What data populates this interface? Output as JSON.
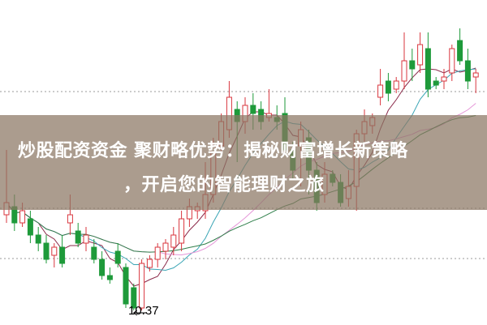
{
  "title": {
    "line1": "炒股配资资金 聚财略优势：揭秘财富增长新策略",
    "line2": "，开启您的智能理财之旅"
  },
  "chart_data": {
    "type": "candlestick",
    "low_label": "10.37",
    "colors": {
      "up": "#d9363e",
      "down": "#1e9a3a",
      "ma": [
        "#8b2a4a",
        "#3aa5b5",
        "#e596d8",
        "#2f7f4a"
      ]
    },
    "candles": [
      {
        "o": 11.55,
        "c": 11.7,
        "h": 12.35,
        "l": 11.45
      },
      {
        "o": 11.65,
        "c": 11.45,
        "h": 11.8,
        "l": 11.35
      },
      {
        "o": 11.45,
        "c": 11.6,
        "h": 11.7,
        "l": 11.4
      },
      {
        "o": 11.5,
        "c": 11.3,
        "h": 11.6,
        "l": 11.2
      },
      {
        "o": 11.3,
        "c": 11.2,
        "h": 11.4,
        "l": 11.1
      },
      {
        "o": 11.2,
        "c": 11.0,
        "h": 11.3,
        "l": 10.95
      },
      {
        "o": 11.05,
        "c": 11.15,
        "h": 11.2,
        "l": 10.9
      },
      {
        "o": 11.15,
        "c": 10.95,
        "h": 11.3,
        "l": 10.9
      },
      {
        "o": 11.45,
        "c": 11.55,
        "h": 11.8,
        "l": 11.3
      },
      {
        "o": 11.35,
        "c": 11.2,
        "h": 11.45,
        "l": 11.15
      },
      {
        "o": 11.2,
        "c": 11.3,
        "h": 11.4,
        "l": 11.1
      },
      {
        "o": 11.15,
        "c": 11.0,
        "h": 11.25,
        "l": 10.95
      },
      {
        "o": 11.0,
        "c": 10.8,
        "h": 11.1,
        "l": 10.75
      },
      {
        "o": 10.8,
        "c": 10.75,
        "h": 10.9,
        "l": 10.7
      },
      {
        "o": 11.1,
        "c": 10.95,
        "h": 11.2,
        "l": 10.9
      },
      {
        "o": 10.9,
        "c": 10.45,
        "h": 10.95,
        "l": 10.4
      },
      {
        "o": 10.65,
        "c": 10.4,
        "h": 10.7,
        "l": 10.37
      },
      {
        "o": 10.4,
        "c": 10.95,
        "h": 11.0,
        "l": 10.37
      },
      {
        "o": 10.9,
        "c": 11.0,
        "h": 11.05,
        "l": 10.85
      },
      {
        "o": 11.0,
        "c": 11.15,
        "h": 11.2,
        "l": 10.9
      },
      {
        "o": 11.1,
        "c": 11.2,
        "h": 11.25,
        "l": 11.0
      },
      {
        "o": 11.15,
        "c": 11.3,
        "h": 11.4,
        "l": 11.05
      },
      {
        "o": 11.2,
        "c": 11.5,
        "h": 11.6,
        "l": 11.1
      },
      {
        "o": 11.5,
        "c": 11.65,
        "h": 11.75,
        "l": 11.4
      },
      {
        "o": 11.6,
        "c": 11.65,
        "h": 11.7,
        "l": 11.5
      },
      {
        "o": 11.6,
        "c": 11.8,
        "h": 12.2,
        "l": 11.5
      },
      {
        "o": 11.8,
        "c": 12.4,
        "h": 12.5,
        "l": 11.7
      },
      {
        "o": 12.4,
        "c": 12.7,
        "h": 12.8,
        "l": 12.3
      },
      {
        "o": 12.6,
        "c": 13.0,
        "h": 13.2,
        "l": 12.5
      },
      {
        "o": 12.85,
        "c": 12.7,
        "h": 12.95,
        "l": 12.2
      },
      {
        "o": 12.7,
        "c": 12.9,
        "h": 13.0,
        "l": 12.55
      },
      {
        "o": 12.9,
        "c": 12.8,
        "h": 13.05,
        "l": 12.6
      },
      {
        "o": 12.85,
        "c": 12.7,
        "h": 12.95,
        "l": 12.6
      },
      {
        "o": 12.75,
        "c": 12.8,
        "h": 13.1,
        "l": 12.7
      },
      {
        "o": 12.75,
        "c": 12.7,
        "h": 12.9,
        "l": 12.6
      },
      {
        "o": 12.8,
        "c": 12.35,
        "h": 13.0,
        "l": 12.3
      },
      {
        "o": 12.35,
        "c": 12.1,
        "h": 12.45,
        "l": 11.98
      },
      {
        "o": 12.4,
        "c": 12.6,
        "h": 12.7,
        "l": 11.9
      },
      {
        "o": 12.5,
        "c": 12.1,
        "h": 12.6,
        "l": 11.8
      },
      {
        "o": 12.1,
        "c": 11.7,
        "h": 12.2,
        "l": 11.6
      },
      {
        "o": 11.8,
        "c": 12.05,
        "h": 12.2,
        "l": 11.7
      },
      {
        "o": 12.05,
        "c": 11.95,
        "h": 12.1,
        "l": 11.9
      },
      {
        "o": 11.95,
        "c": 11.7,
        "h": 12.05,
        "l": 11.65
      },
      {
        "o": 11.75,
        "c": 11.9,
        "h": 12.1,
        "l": 11.65
      },
      {
        "o": 11.9,
        "c": 12.55,
        "h": 12.6,
        "l": 11.6
      },
      {
        "o": 12.55,
        "c": 12.7,
        "h": 12.85,
        "l": 12.45
      },
      {
        "o": 12.65,
        "c": 12.75,
        "h": 12.8,
        "l": 12.55
      },
      {
        "o": 13.0,
        "c": 13.15,
        "h": 13.35,
        "l": 12.9
      },
      {
        "o": 13.2,
        "c": 13.05,
        "h": 13.3,
        "l": 12.95
      },
      {
        "o": 13.1,
        "c": 13.2,
        "h": 13.25,
        "l": 13.05
      },
      {
        "o": 13.2,
        "c": 13.45,
        "h": 13.8,
        "l": 13.1
      },
      {
        "o": 13.45,
        "c": 13.35,
        "h": 13.6,
        "l": 13.2
      },
      {
        "o": 13.4,
        "c": 13.65,
        "h": 13.8,
        "l": 13.3
      },
      {
        "o": 13.6,
        "c": 13.1,
        "h": 13.8,
        "l": 13.0
      },
      {
        "o": 13.2,
        "c": 13.15,
        "h": 13.25,
        "l": 13.1
      },
      {
        "o": 13.2,
        "c": 13.25,
        "h": 13.35,
        "l": 13.1
      },
      {
        "o": 13.3,
        "c": 13.6,
        "h": 13.65,
        "l": 13.2
      },
      {
        "o": 13.7,
        "c": 13.45,
        "h": 13.85,
        "l": 13.4
      },
      {
        "o": 13.45,
        "c": 13.2,
        "h": 13.6,
        "l": 13.1
      },
      {
        "o": 13.25,
        "c": 13.3,
        "h": 13.35,
        "l": 13.05
      }
    ],
    "ma_periods": [
      5,
      10,
      20,
      30
    ]
  }
}
